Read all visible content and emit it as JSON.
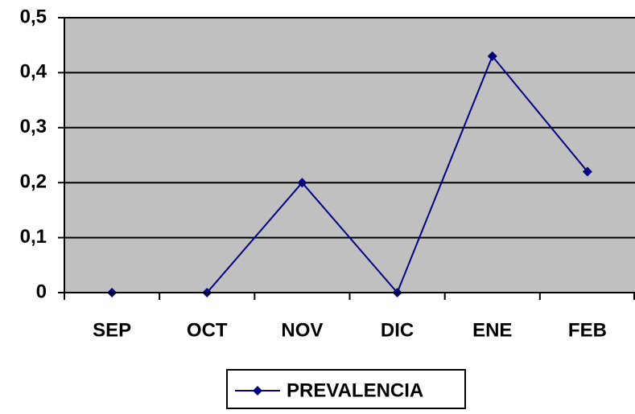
{
  "chart_data": {
    "type": "line",
    "categories": [
      "SEP",
      "OCT",
      "NOV",
      "DIC",
      "ENE",
      "FEB"
    ],
    "series": [
      {
        "name": "PREVALENCIA",
        "color": "#000080",
        "values": [
          0,
          0,
          0.2,
          0,
          0.43,
          0.22
        ]
      }
    ],
    "ylim": [
      0,
      0.5
    ],
    "yticks": [
      0,
      {
        "value": 0.1,
        "label": "0,1"
      },
      {
        "value": 0.2,
        "label": "0,2"
      },
      {
        "value": 0.3,
        "label": "0,3"
      },
      {
        "value": 0.4,
        "label": "0,4"
      },
      {
        "value": 0.5,
        "label": "0,5"
      }
    ],
    "grid": true,
    "plot_background": "#c0c0c0",
    "legend": "bottom"
  }
}
